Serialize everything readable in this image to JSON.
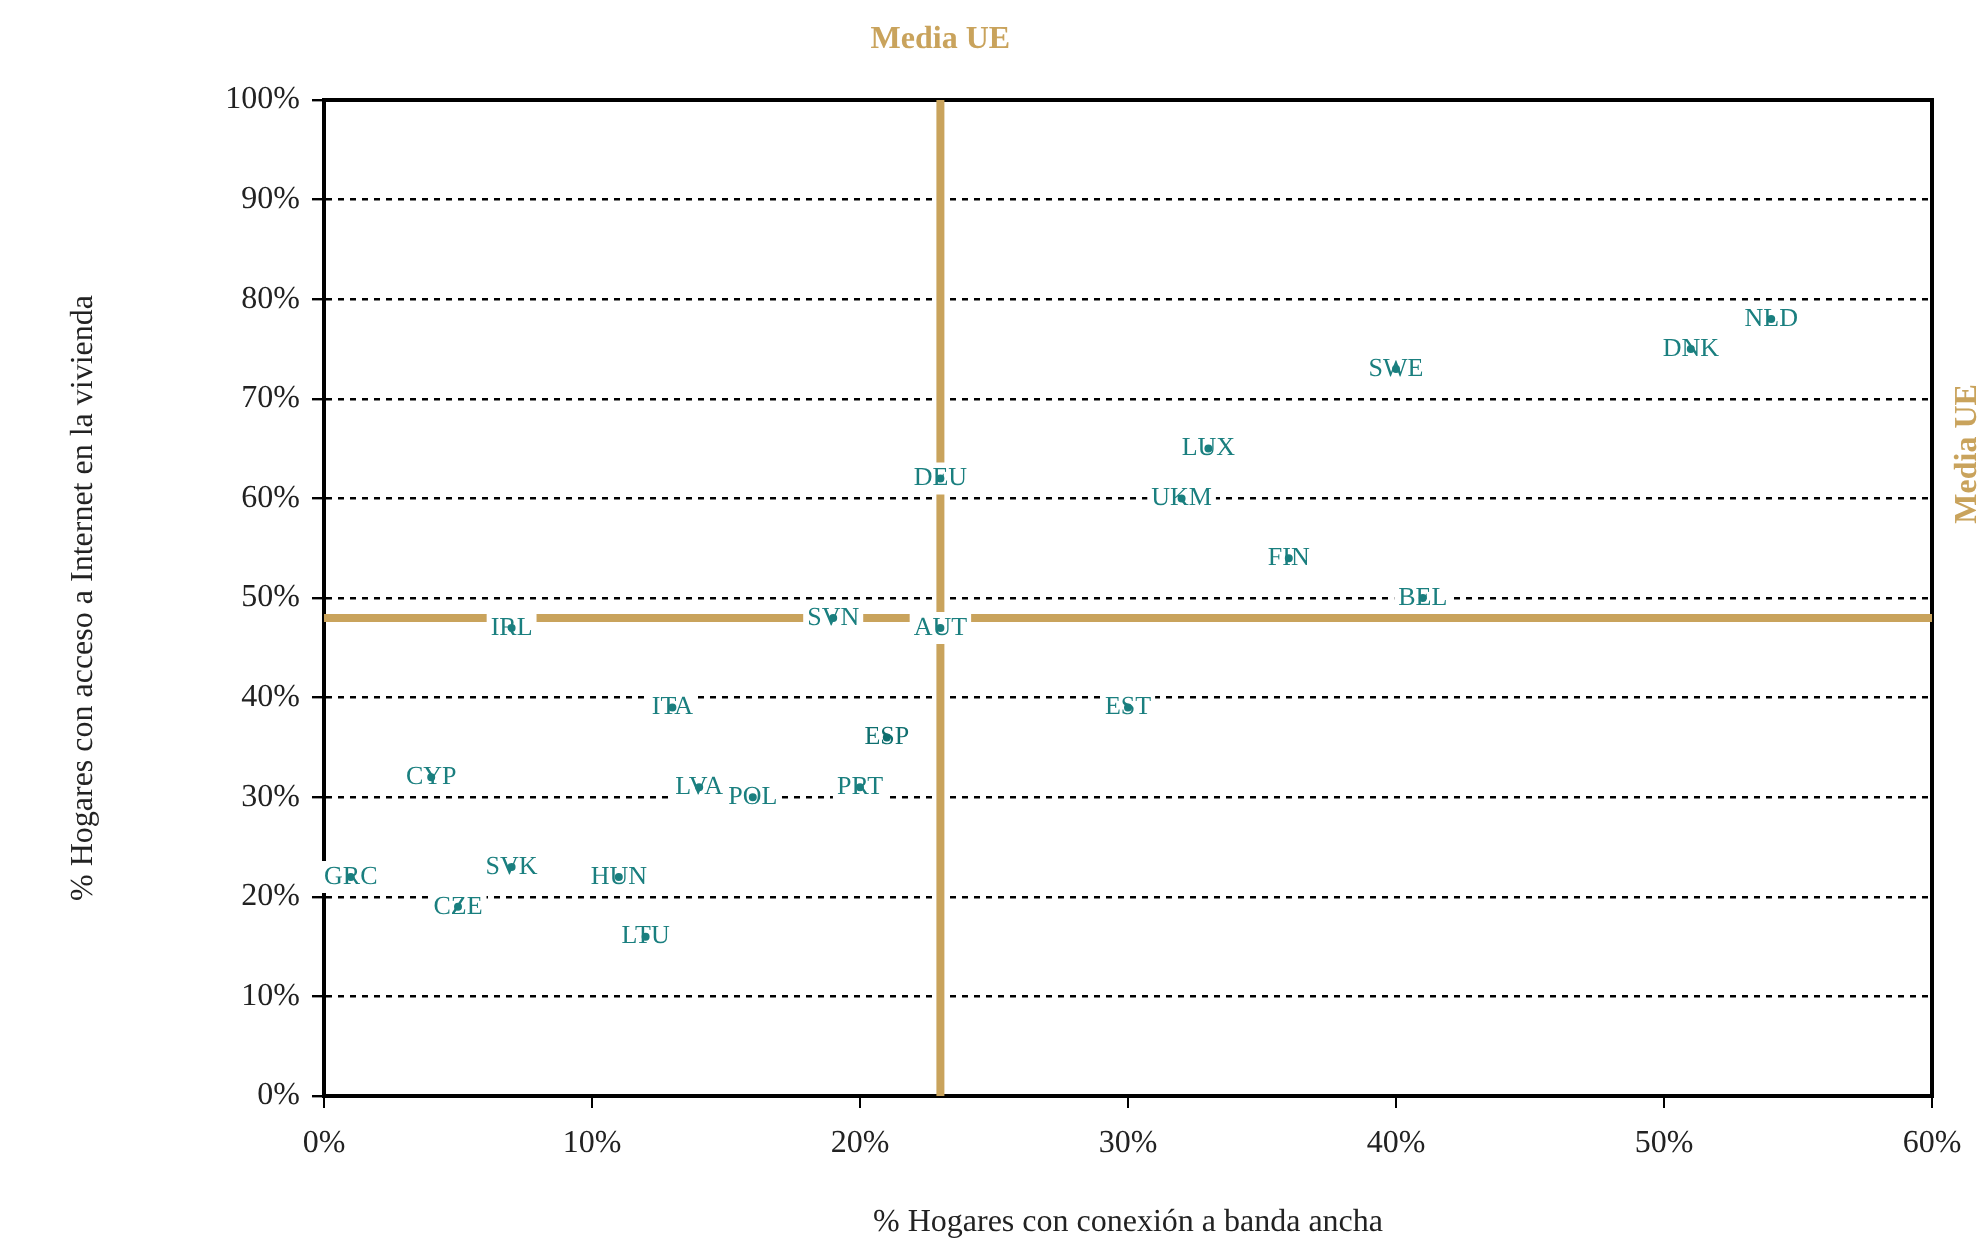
{
  "chart_data": {
    "type": "scatter",
    "xlabel": "% Hogares con conexión a banda ancha",
    "ylabel": "% Hogares con acceso a Internet en la vivienda",
    "xlim": [
      0,
      60
    ],
    "xticks": [
      {
        "value": 0,
        "label": "0%"
      },
      {
        "value": 10,
        "label": "10%"
      },
      {
        "value": 20,
        "label": "20%"
      },
      {
        "value": 30,
        "label": "30%"
      },
      {
        "value": 40,
        "label": "40%"
      },
      {
        "value": 50,
        "label": "50%"
      },
      {
        "value": 60,
        "label": "60%"
      }
    ],
    "ylim": [
      0,
      100
    ],
    "yticks": [
      {
        "value": 0,
        "label": "0%"
      },
      {
        "value": 10,
        "label": "10%"
      },
      {
        "value": 20,
        "label": "20%"
      },
      {
        "value": 30,
        "label": "30%"
      },
      {
        "value": 40,
        "label": "40%"
      },
      {
        "value": 50,
        "label": "50%"
      },
      {
        "value": 60,
        "label": "60%"
      },
      {
        "value": 70,
        "label": "70%"
      },
      {
        "value": 80,
        "label": "80%"
      },
      {
        "value": 90,
        "label": "90%"
      },
      {
        "value": 100,
        "label": "100%"
      }
    ],
    "grid": "y",
    "legend": false,
    "series": [
      {
        "name": "NLD",
        "color": "#1a7f7f",
        "x": [
          54
        ],
        "values": [
          78
        ]
      },
      {
        "name": "DNK",
        "color": "#1a7f7f",
        "x": [
          51
        ],
        "values": [
          75
        ]
      },
      {
        "name": "SWE",
        "color": "#1a7f7f",
        "x": [
          40
        ],
        "values": [
          73
        ]
      },
      {
        "name": "LUX",
        "color": "#1a7f7f",
        "x": [
          33
        ],
        "values": [
          65
        ]
      },
      {
        "name": "UKM",
        "color": "#1a7f7f",
        "x": [
          32
        ],
        "values": [
          60
        ]
      },
      {
        "name": "DEU",
        "color": "#1a7f7f",
        "x": [
          23
        ],
        "values": [
          62
        ]
      },
      {
        "name": "FIN",
        "color": "#1a7f7f",
        "x": [
          36
        ],
        "values": [
          54
        ]
      },
      {
        "name": "BEL",
        "color": "#1a7f7f",
        "x": [
          41
        ],
        "values": [
          50
        ]
      },
      {
        "name": "SVN",
        "color": "#1a7f7f",
        "x": [
          19
        ],
        "values": [
          48
        ]
      },
      {
        "name": "AUT",
        "color": "#1a7f7f",
        "x": [
          23
        ],
        "values": [
          47
        ]
      },
      {
        "name": "IRL",
        "color": "#1a7f7f",
        "x": [
          7
        ],
        "values": [
          47
        ]
      },
      {
        "name": "ITA",
        "color": "#1a7f7f",
        "x": [
          13
        ],
        "values": [
          39
        ]
      },
      {
        "name": "EST",
        "color": "#1a7f7f",
        "x": [
          30
        ],
        "values": [
          39
        ]
      },
      {
        "name": "ESP",
        "color": "#0f6f6f",
        "x": [
          21
        ],
        "values": [
          36
        ]
      },
      {
        "name": "CYP",
        "color": "#1a7f7f",
        "x": [
          4
        ],
        "values": [
          32
        ]
      },
      {
        "name": "LVA",
        "color": "#1a7f7f",
        "x": [
          14
        ],
        "values": [
          31
        ]
      },
      {
        "name": "POL",
        "color": "#1a7f7f",
        "x": [
          16
        ],
        "values": [
          30
        ]
      },
      {
        "name": "PRT",
        "color": "#1a7f7f",
        "x": [
          20
        ],
        "values": [
          31
        ]
      },
      {
        "name": "GRC",
        "color": "#1a7f7f",
        "x": [
          1
        ],
        "values": [
          22
        ]
      },
      {
        "name": "SVK",
        "color": "#1a7f7f",
        "x": [
          7
        ],
        "values": [
          23
        ]
      },
      {
        "name": "HUN",
        "color": "#1a7f7f",
        "x": [
          11
        ],
        "values": [
          22
        ]
      },
      {
        "name": "CZE",
        "color": "#1a7f7f",
        "x": [
          5
        ],
        "values": [
          19
        ]
      },
      {
        "name": "LTU",
        "color": "#1a7f7f",
        "x": [
          12
        ],
        "values": [
          16
        ]
      }
    ],
    "ref_lines": [
      {
        "axis": "x",
        "value": 23,
        "label": "Media UE",
        "color": "#c9a35c"
      },
      {
        "axis": "y",
        "value": 48,
        "label": "Media UE",
        "color": "#c9a35c"
      }
    ]
  }
}
